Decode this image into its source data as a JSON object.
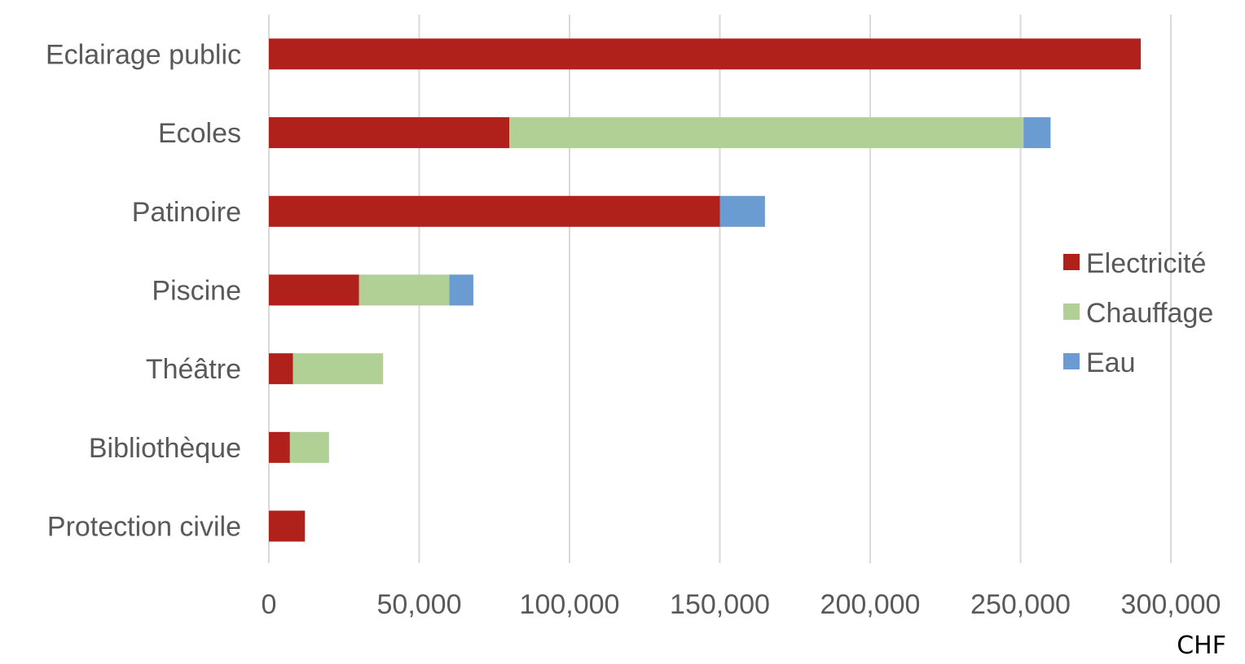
{
  "chart_data": {
    "type": "bar",
    "orientation": "horizontal",
    "stacked": true,
    "categories": [
      "Eclairage public",
      "Ecoles",
      "Patinoire",
      "Piscine",
      "Théâtre",
      "Bibliothèque",
      "Protection civile"
    ],
    "series": [
      {
        "name": "Electricité",
        "color": "#b0211b",
        "values": [
          290000,
          80000,
          150000,
          30000,
          8000,
          7000,
          12000
        ]
      },
      {
        "name": "Chauffage",
        "color": "#b1d095",
        "values": [
          0,
          171000,
          0,
          30000,
          30000,
          13000,
          0
        ]
      },
      {
        "name": "Eau",
        "color": "#6a9bd1",
        "values": [
          0,
          9000,
          15000,
          8000,
          0,
          0,
          0
        ]
      }
    ],
    "xlim": [
      0,
      300000
    ],
    "xticks": [
      0,
      50000,
      100000,
      150000,
      200000,
      250000,
      300000
    ],
    "xtick_labels": [
      "0",
      "50,000",
      "100,000",
      "150,000",
      "200,000",
      "250,000",
      "300,000"
    ],
    "xlabel": "CHF",
    "grid": true,
    "legend_position": "right"
  }
}
